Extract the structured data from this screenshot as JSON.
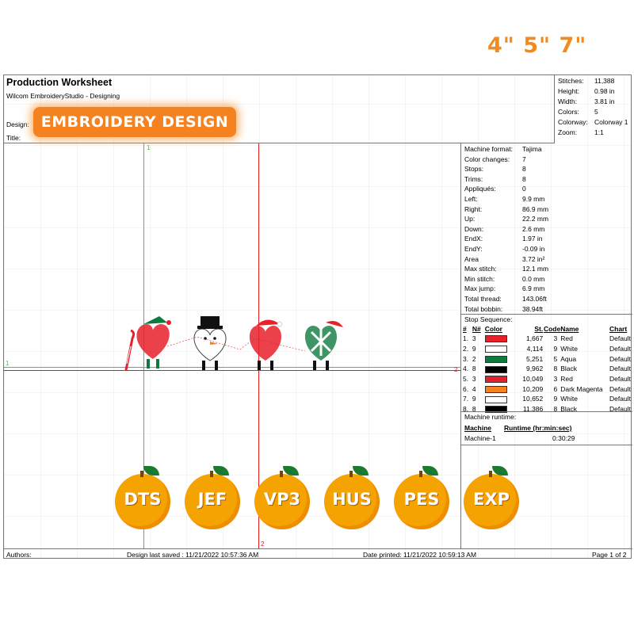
{
  "header": {
    "title": "Production Worksheet",
    "subtitle": "Wilcom EmbroideryStudio - Designing",
    "design_label": "Design:",
    "title_label": "Title:"
  },
  "badge": {
    "text": "EMBROIDERY DESIGN"
  },
  "size_label": "4\" 5\" 7\"",
  "stats": [
    {
      "k": "Stitches:",
      "v": "11,388"
    },
    {
      "k": "Height:",
      "v": "0.98 in"
    },
    {
      "k": "Width:",
      "v": "3.81 in"
    },
    {
      "k": "Colors:",
      "v": "5"
    },
    {
      "k": "Colorway:",
      "v": "Colorway 1"
    },
    {
      "k": "Zoom:",
      "v": "1:1"
    }
  ],
  "machine_info": [
    {
      "k": "Machine format:",
      "v": "Tajima"
    },
    {
      "k": "Color changes:",
      "v": "7"
    },
    {
      "k": "Stops:",
      "v": "8"
    },
    {
      "k": "Trims:",
      "v": "8"
    },
    {
      "k": "Appliqués:",
      "v": "0"
    },
    {
      "k": "Left:",
      "v": "9.9 mm"
    },
    {
      "k": "Right:",
      "v": "86.9 mm"
    },
    {
      "k": "Up:",
      "v": "22.2 mm"
    },
    {
      "k": "Down:",
      "v": "2.6 mm"
    },
    {
      "k": "EndX:",
      "v": "1.97 in"
    },
    {
      "k": "EndY:",
      "v": "-0.09 in"
    },
    {
      "k": "Area",
      "v": "3.72 in²"
    },
    {
      "k": "Max stitch:",
      "v": "12.1 mm"
    },
    {
      "k": "Min stitch:",
      "v": "0.0 mm"
    },
    {
      "k": "Max jump:",
      "v": "6.9 mm"
    },
    {
      "k": "Total thread:",
      "v": "143.06ft"
    },
    {
      "k": "Total bobbin:",
      "v": "38.94ft"
    }
  ],
  "stop_sequence": {
    "title": "Stop Sequence:",
    "headers": [
      "#",
      "N#",
      "Color",
      "St.",
      "Code",
      "Name",
      "Chart"
    ],
    "rows": [
      {
        "idx": "1.",
        "n": "3",
        "color": "#e8202a",
        "st": "1,667",
        "code": "3",
        "name": "Red",
        "chart": "Default"
      },
      {
        "idx": "2.",
        "n": "9",
        "color": "#ffffff",
        "st": "4,114",
        "code": "9",
        "name": "White",
        "chart": "Default"
      },
      {
        "idx": "3.",
        "n": "2",
        "color": "#0f7a40",
        "st": "5,251",
        "code": "5",
        "name": "Aqua",
        "chart": "Default"
      },
      {
        "idx": "4.",
        "n": "8",
        "color": "#000000",
        "st": "9,962",
        "code": "8",
        "name": "Black",
        "chart": "Default"
      },
      {
        "idx": "5.",
        "n": "3",
        "color": "#e8202a",
        "st": "10,049",
        "code": "3",
        "name": "Red",
        "chart": "Default"
      },
      {
        "idx": "6.",
        "n": "4",
        "color": "#f58220",
        "st": "10,209",
        "code": "6",
        "name": "Dark Magenta",
        "chart": "Default"
      },
      {
        "idx": "7.",
        "n": "9",
        "color": "#ffffff",
        "st": "10,652",
        "code": "9",
        "name": "White",
        "chart": "Default"
      },
      {
        "idx": "8.",
        "n": "8",
        "color": "#000000",
        "st": "11,386",
        "code": "8",
        "name": "Black",
        "chart": "Default"
      }
    ]
  },
  "runtime": {
    "title": "Machine runtime:",
    "col_machine": "Machine",
    "col_runtime": "Runtime (hr:min:sec)",
    "machine": "Machine-1",
    "time": "0:30:29"
  },
  "axis_markers": {
    "top_left": "1",
    "left_mid": "1",
    "right_mid": "2",
    "bottom": "2"
  },
  "formats": [
    "DTS",
    "JEF",
    "VP3",
    "HUS",
    "PES",
    "EXP"
  ],
  "footer": {
    "authors": "Authors:",
    "saved": "Design last saved : 11/21/2022 10:57:36 AM",
    "printed": "Date printed: 11/21/2022 10:59:13 AM",
    "page": "Page 1 of 2"
  },
  "colors": {
    "accent": "#f58220",
    "orange_fruit": "#f5a300",
    "leaf": "#1a7a30",
    "guide_green": "#33cc44",
    "guide_red": "#e02020"
  }
}
